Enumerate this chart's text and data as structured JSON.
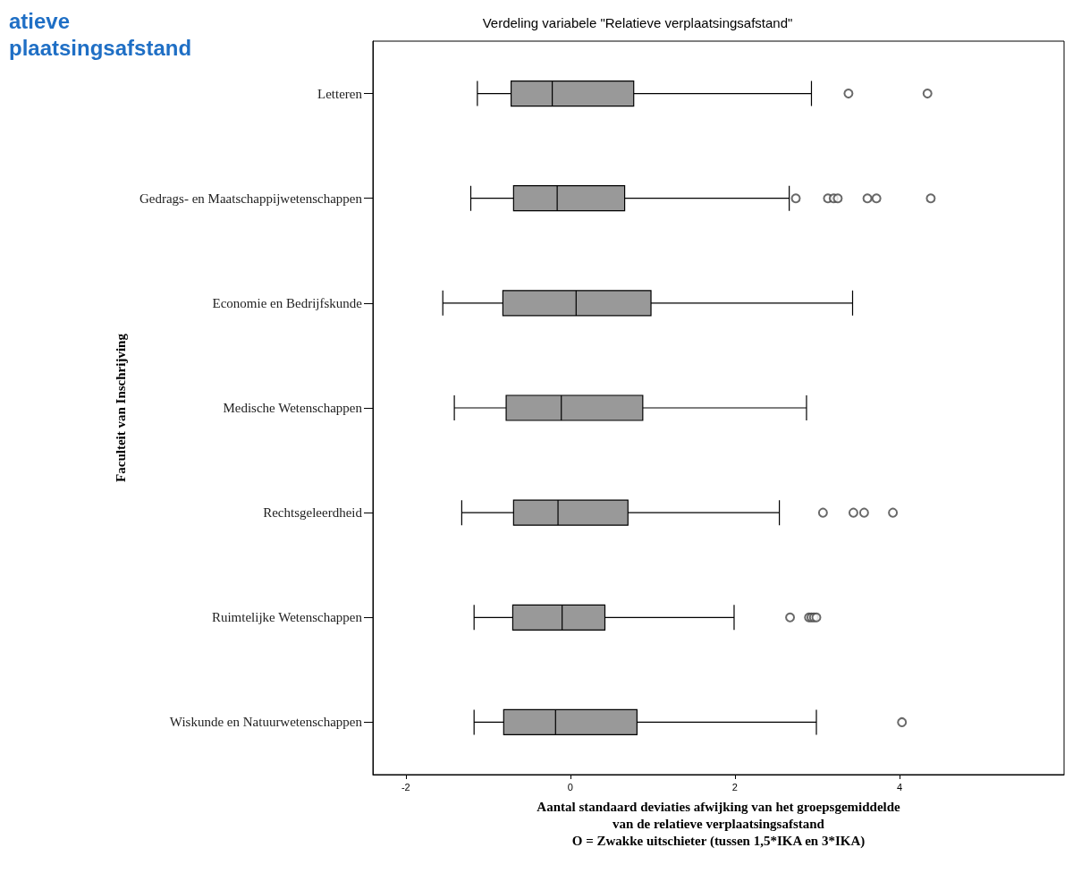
{
  "chart_data": {
    "type": "box",
    "orientation": "horizontal",
    "title": "Verdeling variabele \"Relatieve verplaatsingsafstand\"",
    "xlabel": "Aantal standaard deviaties afwijking van het groepsgemiddelde\nvan de relatieve verplaatsingsafstand\nO = Zwakke uitschieter (tussen 1,5*IKA en 3*IKA)",
    "ylabel": "Faculteit van Inschrijving",
    "annotations": [
      "atieve\nplaatsingsafstand"
    ],
    "categories": [
      "Letteren",
      "Gedrags- en Maatschappijwetenschappen",
      "Economie en Bedrijfskunde",
      "Medische Wetenschappen",
      "Rechtsgeleerdheid",
      "Ruimtelijke Wetenschappen",
      "Wiskunde en Natuurwetenschappen"
    ],
    "xlim": [
      -2.4,
      6
    ],
    "xticks": [
      -2,
      0,
      2,
      4
    ],
    "series": [
      {
        "color": "#999999",
        "boxes": [
          {
            "low": -1.13,
            "q1": -0.72,
            "median": -0.22,
            "q3": 0.77,
            "high": 2.93,
            "outliers": [
              3.38,
              4.34
            ]
          },
          {
            "low": -1.21,
            "q1": -0.69,
            "median": -0.16,
            "q3": 0.66,
            "high": 2.66,
            "outliers": [
              2.74,
              3.13,
              3.2,
              3.25,
              3.61,
              3.72,
              4.38
            ]
          },
          {
            "low": -1.55,
            "q1": -0.82,
            "median": 0.07,
            "q3": 0.98,
            "high": 3.43
          },
          {
            "low": -1.41,
            "q1": -0.78,
            "median": -0.11,
            "q3": 0.88,
            "high": 2.87
          },
          {
            "low": -1.32,
            "q1": -0.69,
            "median": -0.15,
            "q3": 0.7,
            "high": 2.54,
            "outliers": [
              3.07,
              3.44,
              3.57,
              3.92
            ]
          },
          {
            "low": -1.17,
            "q1": -0.7,
            "median": -0.1,
            "q3": 0.42,
            "high": 1.99,
            "outliers": [
              2.67,
              2.9,
              2.93,
              2.96,
              2.99
            ]
          },
          {
            "low": -1.17,
            "q1": -0.81,
            "median": -0.18,
            "q3": 0.81,
            "high": 2.99,
            "outliers": [
              4.03
            ]
          }
        ]
      }
    ]
  }
}
